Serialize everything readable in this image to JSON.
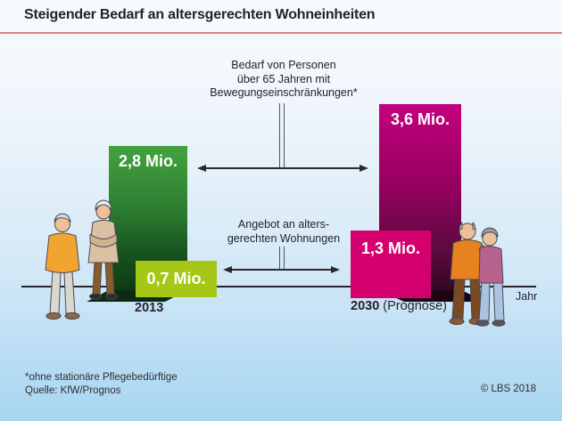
{
  "header": {
    "title": "Steigender Bedarf an altersgerechten Wohneinheiten"
  },
  "chart_data": {
    "type": "bar",
    "title": "Steigender Bedarf an altersgerechten Wohneinheiten",
    "categories": [
      "2013",
      "2030 (Prognose)"
    ],
    "series": [
      {
        "name": "Bedarf von Personen über 65 Jahren mit Bewegungseinschränkungen*",
        "values": [
          2.8,
          3.6
        ],
        "labels": [
          "2,8 Mio.",
          "3,6 Mio."
        ],
        "colors": [
          "#3f9e3c",
          "#c3007f"
        ]
      },
      {
        "name": "Angebot an altersgerechten Wohnungen",
        "values": [
          0.7,
          1.3
        ],
        "labels": [
          "0,7 Mio.",
          "1,3 Mio."
        ],
        "colors": [
          "#a6c716",
          "#d4006e"
        ]
      }
    ],
    "unit": "Mio.",
    "xlabel": "Jahr",
    "ylim": [
      0,
      3.6
    ],
    "grid": false,
    "legend_position": "center-annotations-with-arrows"
  },
  "annotations": {
    "bedarf": [
      "Bedarf von Personen",
      "über 65 Jahren mit",
      "Bewegungseinschränkungen*"
    ],
    "angebot": [
      "Angebot an alters-",
      "gerechten Wohnungen"
    ]
  },
  "axis": {
    "xlabel": "Jahr",
    "left_category": "2013",
    "right_category_bold": "2030",
    "right_category_suffix": "(Prognose)"
  },
  "footer": {
    "footnote": "*ohne stationäre Pflegebedürftige",
    "source": "Quelle: KfW/Prognos",
    "copyright": "© LBS 2018"
  },
  "colors": {
    "accent_rule": "#e57e7e",
    "axis": "#26262c",
    "bar_bedarf_2013_top": "#44a23e",
    "bar_bedarf_2013_bottom": "#0e3a14",
    "bar_angebot_2013": "#a6c716",
    "bar_bedarf_2030_top": "#c3007f",
    "bar_bedarf_2030_bottom": "#330722",
    "bar_angebot_2030": "#d4006e"
  }
}
